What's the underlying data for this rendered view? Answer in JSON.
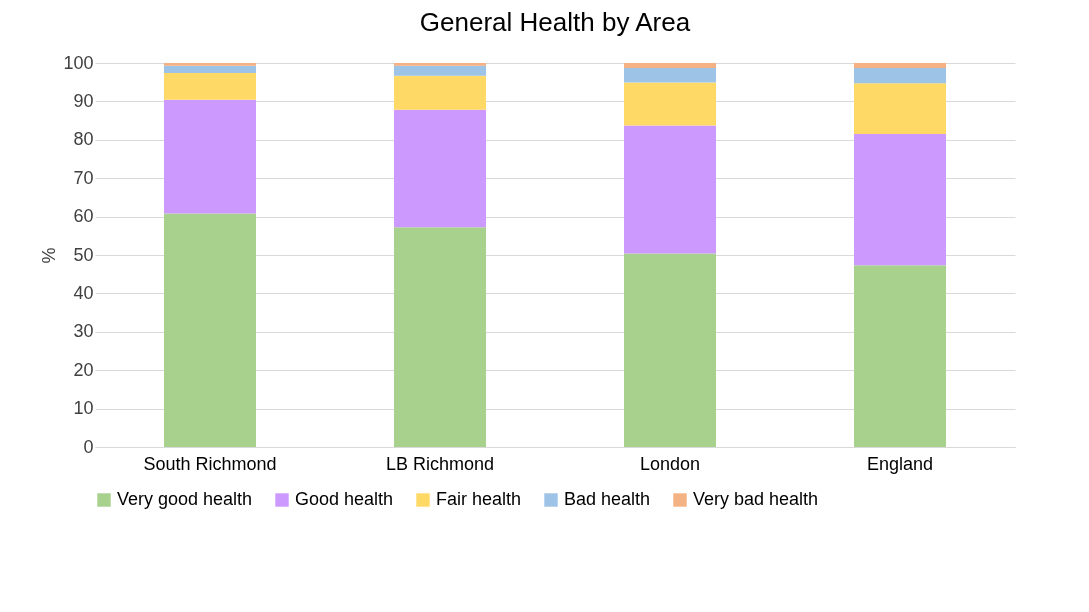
{
  "chart_data": {
    "type": "bar",
    "stacked": true,
    "title": "General Health by Area",
    "ylabel": "%",
    "categories": [
      "South Richmond",
      "LB Richmond",
      "London",
      "England"
    ],
    "series": [
      {
        "name": "Very good health",
        "color": "#a9d18e",
        "values": [
          60.8,
          57.2,
          50.4,
          47.3
        ]
      },
      {
        "name": "Good health",
        "color": "#cc99ff",
        "values": [
          29.6,
          30.6,
          33.3,
          34.2
        ]
      },
      {
        "name": "Fair health",
        "color": "#ffd966",
        "values": [
          7.0,
          8.9,
          11.2,
          13.2
        ]
      },
      {
        "name": "Bad health",
        "color": "#9dc3e6",
        "values": [
          1.9,
          2.6,
          3.8,
          4.0
        ]
      },
      {
        "name": "Very bad health",
        "color": "#f4b183",
        "values": [
          0.7,
          0.7,
          1.3,
          1.3
        ]
      }
    ],
    "ylim": [
      0,
      100
    ],
    "yticks": [
      0,
      10,
      20,
      30,
      40,
      50,
      60,
      70,
      80,
      90,
      100
    ],
    "grid": "y",
    "legend": "bottom"
  }
}
